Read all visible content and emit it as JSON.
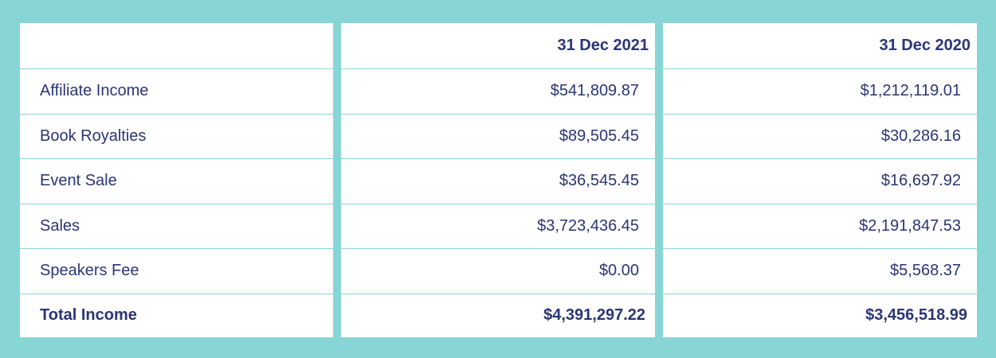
{
  "table": {
    "headers": [
      "31 Dec 2021",
      "31 Dec 2020"
    ],
    "rows": [
      [
        "Affiliate Income",
        "$541,809.87",
        "$1,212,119.01"
      ],
      [
        "Book Royalties",
        "$89,505.45",
        "$30,286.16"
      ],
      [
        "Event Sale",
        "$36,545.45",
        "$16,697.92"
      ],
      [
        "Sales",
        "$3,723,436.45",
        "$2,191,847.53"
      ],
      [
        "Speakers Fee",
        "$0.00",
        "$5,568.37"
      ]
    ],
    "total": [
      "Total Income",
      "$4,391,297.22",
      "$3,456,518.99"
    ]
  }
}
